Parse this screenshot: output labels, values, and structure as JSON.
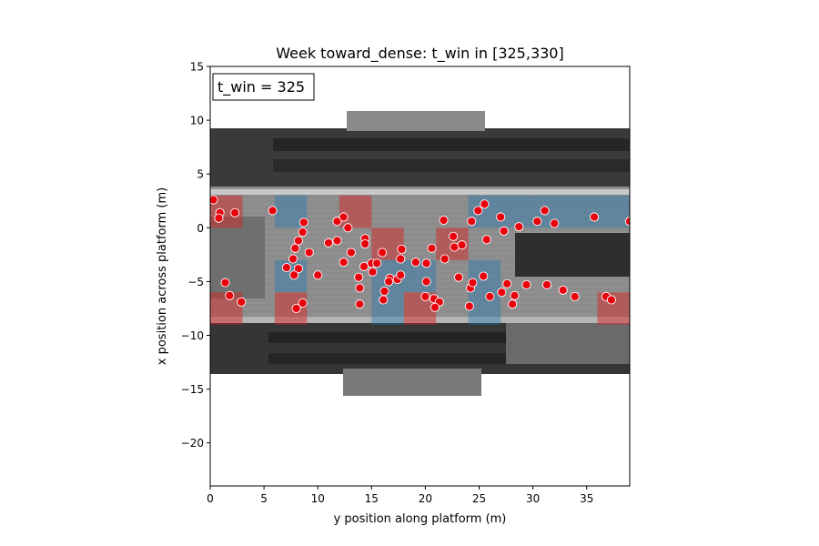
{
  "chart_data": {
    "type": "scatter",
    "title": "Week toward_dense: t_win in [325,330]",
    "xlabel": "y position along platform (m)",
    "ylabel": "x position across platform (m)",
    "xlim": [
      0,
      39
    ],
    "ylim": [
      -24,
      15
    ],
    "xticks": [
      0,
      5,
      10,
      15,
      20,
      25,
      30,
      35
    ],
    "yticks": [
      -20,
      -15,
      -10,
      -5,
      0,
      5,
      10,
      15
    ],
    "annotation": "t_win = 325",
    "grid": false,
    "background": "grayscale aerial image of train station platform with tracks",
    "point_color": "#e8000b",
    "point_edge_color": "#ffffff",
    "heat_colors": {
      "high": "#d62728",
      "low": "#1f77b4"
    },
    "heat_cells": [
      {
        "x0": 0,
        "x1": 3,
        "y0": 0,
        "y1": 3,
        "level": "high"
      },
      {
        "x0": 0,
        "x1": 3,
        "y0": -9,
        "y1": -6,
        "level": "high"
      },
      {
        "x0": 6,
        "x1": 9,
        "y0": -9,
        "y1": -6,
        "level": "high"
      },
      {
        "x0": 12,
        "x1": 15,
        "y0": 0,
        "y1": 3,
        "level": "high"
      },
      {
        "x0": 15,
        "x1": 18,
        "y0": -3,
        "y1": 0,
        "level": "high"
      },
      {
        "x0": 18,
        "x1": 21,
        "y0": -9,
        "y1": -6,
        "level": "high"
      },
      {
        "x0": 21,
        "x1": 24,
        "y0": -3,
        "y1": 0,
        "level": "high"
      },
      {
        "x0": 36,
        "x1": 39,
        "y0": -9,
        "y1": -6,
        "level": "high"
      },
      {
        "x0": 6,
        "x1": 9,
        "y0": 0,
        "y1": 3,
        "level": "low"
      },
      {
        "x0": 6,
        "x1": 9,
        "y0": -6,
        "y1": -3,
        "level": "low"
      },
      {
        "x0": 15,
        "x1": 18,
        "y0": -9,
        "y1": -6,
        "level": "low"
      },
      {
        "x0": 24,
        "x1": 30,
        "y0": 0,
        "y1": 3,
        "level": "low"
      },
      {
        "x0": 24,
        "x1": 27,
        "y0": -9,
        "y1": -3,
        "level": "low"
      },
      {
        "x0": 30,
        "x1": 39,
        "y0": 0,
        "y1": 3,
        "level": "low"
      },
      {
        "x0": 15,
        "x1": 21,
        "y0": -6,
        "y1": -3,
        "level": "low"
      }
    ],
    "points": [
      [
        0.3,
        2.6
      ],
      [
        0.9,
        1.4
      ],
      [
        0.8,
        0.9
      ],
      [
        2.3,
        1.4
      ],
      [
        1.4,
        -5.1
      ],
      [
        1.8,
        -6.3
      ],
      [
        2.9,
        -6.9
      ],
      [
        5.8,
        1.6
      ],
      [
        8.7,
        0.5
      ],
      [
        8.6,
        -0.4
      ],
      [
        7.9,
        -1.9
      ],
      [
        8.2,
        -1.2
      ],
      [
        7.7,
        -2.9
      ],
      [
        7.1,
        -3.7
      ],
      [
        8.2,
        -3.8
      ],
      [
        7.8,
        -4.4
      ],
      [
        8.6,
        -7.0
      ],
      [
        8.0,
        -7.5
      ],
      [
        9.2,
        -2.3
      ],
      [
        10.0,
        -4.4
      ],
      [
        11.8,
        0.6
      ],
      [
        12.4,
        1.0
      ],
      [
        12.8,
        0.0
      ],
      [
        11.0,
        -1.4
      ],
      [
        11.8,
        -1.2
      ],
      [
        12.4,
        -3.2
      ],
      [
        13.1,
        -2.3
      ],
      [
        14.3,
        -3.6
      ],
      [
        13.8,
        -4.6
      ],
      [
        13.9,
        -5.6
      ],
      [
        13.9,
        -7.1
      ],
      [
        14.4,
        -1.0
      ],
      [
        14.4,
        -1.5
      ],
      [
        15.0,
        -3.3
      ],
      [
        15.1,
        -4.1
      ],
      [
        15.5,
        -3.3
      ],
      [
        16.0,
        -2.3
      ],
      [
        16.2,
        -5.9
      ],
      [
        16.1,
        -6.7
      ],
      [
        16.7,
        -4.7
      ],
      [
        16.6,
        -5.0
      ],
      [
        17.4,
        -4.8
      ],
      [
        17.7,
        -4.4
      ],
      [
        17.8,
        -2.0
      ],
      [
        17.7,
        -2.9
      ],
      [
        19.1,
        -3.2
      ],
      [
        20.1,
        -3.3
      ],
      [
        20.1,
        -5.0
      ],
      [
        20.0,
        -6.4
      ],
      [
        20.6,
        -1.9
      ],
      [
        20.8,
        -6.6
      ],
      [
        21.3,
        -6.9
      ],
      [
        20.9,
        -7.4
      ],
      [
        21.7,
        0.7
      ],
      [
        21.8,
        -2.9
      ],
      [
        22.6,
        -0.8
      ],
      [
        22.7,
        -1.8
      ],
      [
        23.1,
        -4.6
      ],
      [
        23.4,
        -1.6
      ],
      [
        24.1,
        -7.3
      ],
      [
        24.2,
        -5.6
      ],
      [
        24.3,
        0.6
      ],
      [
        24.4,
        -5.1
      ],
      [
        24.9,
        1.6
      ],
      [
        25.5,
        2.2
      ],
      [
        25.4,
        -4.5
      ],
      [
        25.7,
        -1.1
      ],
      [
        26.0,
        -6.4
      ],
      [
        27.0,
        1.0
      ],
      [
        27.3,
        -0.3
      ],
      [
        27.1,
        -6.0
      ],
      [
        27.6,
        -5.2
      ],
      [
        28.1,
        -7.1
      ],
      [
        28.3,
        -6.3
      ],
      [
        28.7,
        0.1
      ],
      [
        29.4,
        -5.3
      ],
      [
        30.4,
        0.6
      ],
      [
        31.1,
        1.6
      ],
      [
        31.3,
        -5.3
      ],
      [
        32.0,
        0.4
      ],
      [
        32.8,
        -5.8
      ],
      [
        33.9,
        -6.4
      ],
      [
        35.7,
        1.0
      ],
      [
        36.8,
        -6.4
      ],
      [
        37.3,
        -6.7
      ],
      [
        39.0,
        0.6
      ]
    ]
  }
}
